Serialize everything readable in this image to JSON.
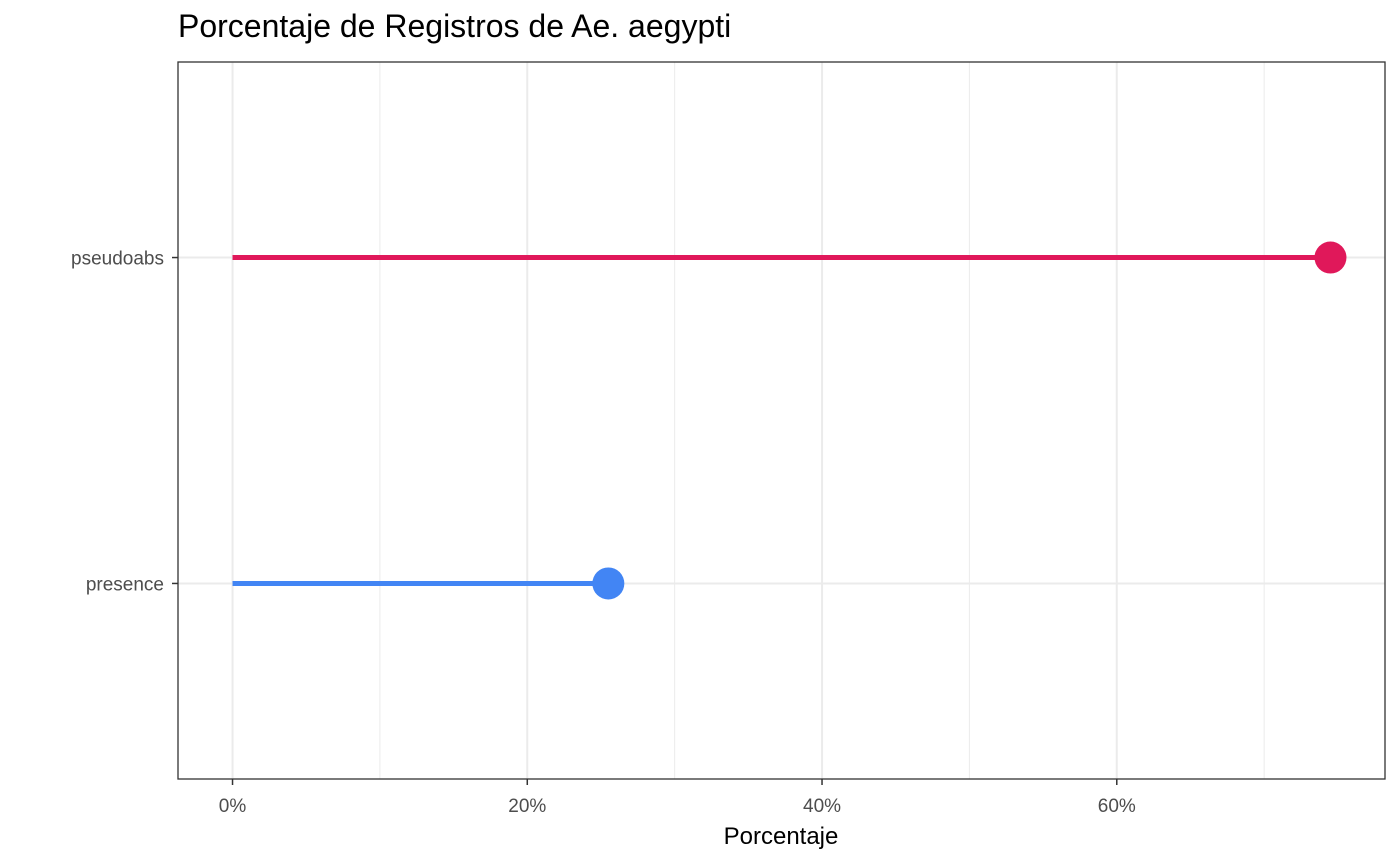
{
  "chart_data": {
    "type": "lollipop",
    "title": "Porcentaje de Registros de Ae. aegypti",
    "xlabel": "Porcentaje",
    "ylabel": "",
    "categories": [
      "presence",
      "pseudoabs"
    ],
    "values": [
      0.255,
      0.745
    ],
    "colors": [
      "#4285f4",
      "#e0185a"
    ],
    "xlim": [
      -0.037,
      0.782
    ],
    "x_ticks": [
      0,
      0.2,
      0.4,
      0.6
    ],
    "x_tick_labels": [
      "0%",
      "20%",
      "40%",
      "60%"
    ],
    "grid": true,
    "legend": "none"
  }
}
